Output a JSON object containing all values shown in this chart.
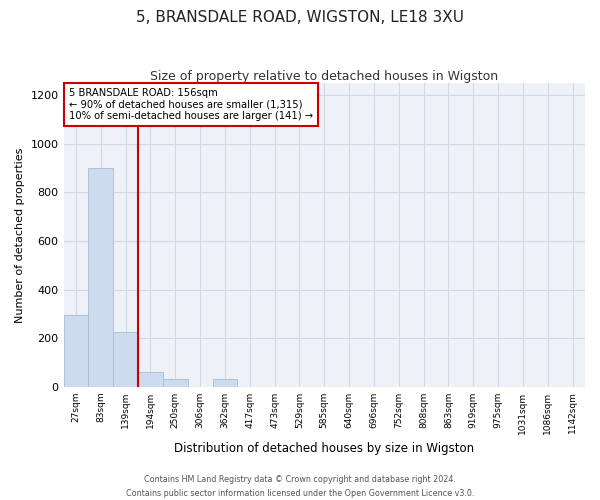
{
  "title_line1": "5, BRANSDALE ROAD, WIGSTON, LE18 3XU",
  "title_line2": "Size of property relative to detached houses in Wigston",
  "xlabel": "Distribution of detached houses by size in Wigston",
  "ylabel": "Number of detached properties",
  "bin_labels": [
    "27sqm",
    "83sqm",
    "139sqm",
    "194sqm",
    "250sqm",
    "306sqm",
    "362sqm",
    "417sqm",
    "473sqm",
    "529sqm",
    "585sqm",
    "640sqm",
    "696sqm",
    "752sqm",
    "808sqm",
    "863sqm",
    "919sqm",
    "975sqm",
    "1031sqm",
    "1086sqm",
    "1142sqm"
  ],
  "bar_values": [
    295,
    900,
    225,
    60,
    30,
    0,
    30,
    0,
    0,
    0,
    0,
    0,
    0,
    0,
    0,
    0,
    0,
    0,
    0,
    0,
    0
  ],
  "bar_color": "#ccdcee",
  "bar_edgecolor": "#aabbd0",
  "vline_x": 2.5,
  "vline_color": "#cc0000",
  "annotation_line1": "5 BRANSDALE ROAD: 156sqm",
  "annotation_line2": "← 90% of detached houses are smaller (1,315)",
  "annotation_line3": "10% of semi-detached houses are larger (141) →",
  "annotation_box_edgecolor": "#cc0000",
  "ylim": [
    0,
    1250
  ],
  "yticks": [
    0,
    200,
    400,
    600,
    800,
    1000,
    1200
  ],
  "grid_color": "#d0dae4",
  "background_color": "#eef2f8",
  "footer_line1": "Contains HM Land Registry data © Crown copyright and database right 2024.",
  "footer_line2": "Contains public sector information licensed under the Open Government Licence v3.0."
}
